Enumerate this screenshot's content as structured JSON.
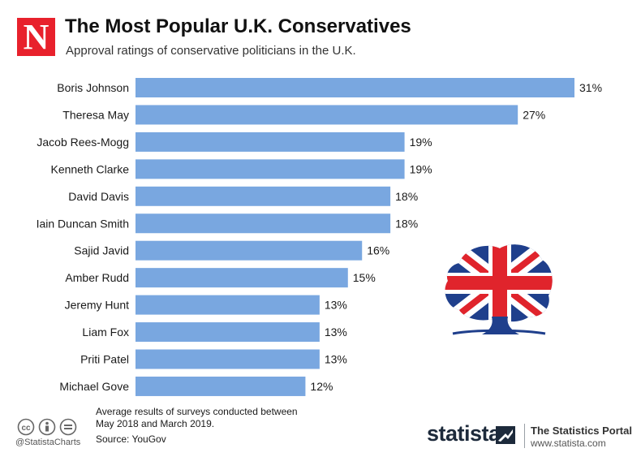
{
  "brand": {
    "logo_letter": "N"
  },
  "header": {
    "title": "The Most Popular U.K. Conservatives",
    "subtitle": "Approval ratings of conservative politicians in the U.K."
  },
  "chart_data": {
    "type": "bar",
    "orientation": "horizontal",
    "categories": [
      "Boris Johnson",
      "Theresa May",
      "Jacob Rees-Mogg",
      "Kenneth Clarke",
      "David Davis",
      "Iain Duncan Smith",
      "Sajid Javid",
      "Amber Rudd",
      "Jeremy Hunt",
      "Liam Fox",
      "Priti Patel",
      "Michael Gove"
    ],
    "values": [
      31,
      27,
      19,
      19,
      18,
      18,
      16,
      15,
      13,
      13,
      13,
      12
    ],
    "value_labels": [
      "31%",
      "27%",
      "19%",
      "19%",
      "18%",
      "18%",
      "16%",
      "15%",
      "13%",
      "13%",
      "13%",
      "12%"
    ],
    "unit": "%",
    "xlim": [
      0,
      31
    ],
    "bar_color": "#79a7e0",
    "grid": false,
    "legend": "none"
  },
  "footer": {
    "note_line1": "Average results of surveys conducted between",
    "note_line2": "May 2018 and March 2019.",
    "source": "Source: YouGov",
    "handle": "@StatistaCharts",
    "icons": [
      "creative-commons-icon",
      "attribution-icon",
      "no-derivatives-icon"
    ],
    "cc_glyphs": [
      "cc",
      "i",
      "="
    ]
  },
  "statista": {
    "wordmark": "statista",
    "portal_name": "The Statistics Portal",
    "portal_url": "www.statista.com",
    "wordmark_color": "#1d2a3b"
  },
  "emblem": {
    "icon": "union-jack-tree-icon",
    "colors": [
      "#1f3f8c",
      "#e0242c",
      "#ffffff"
    ]
  }
}
